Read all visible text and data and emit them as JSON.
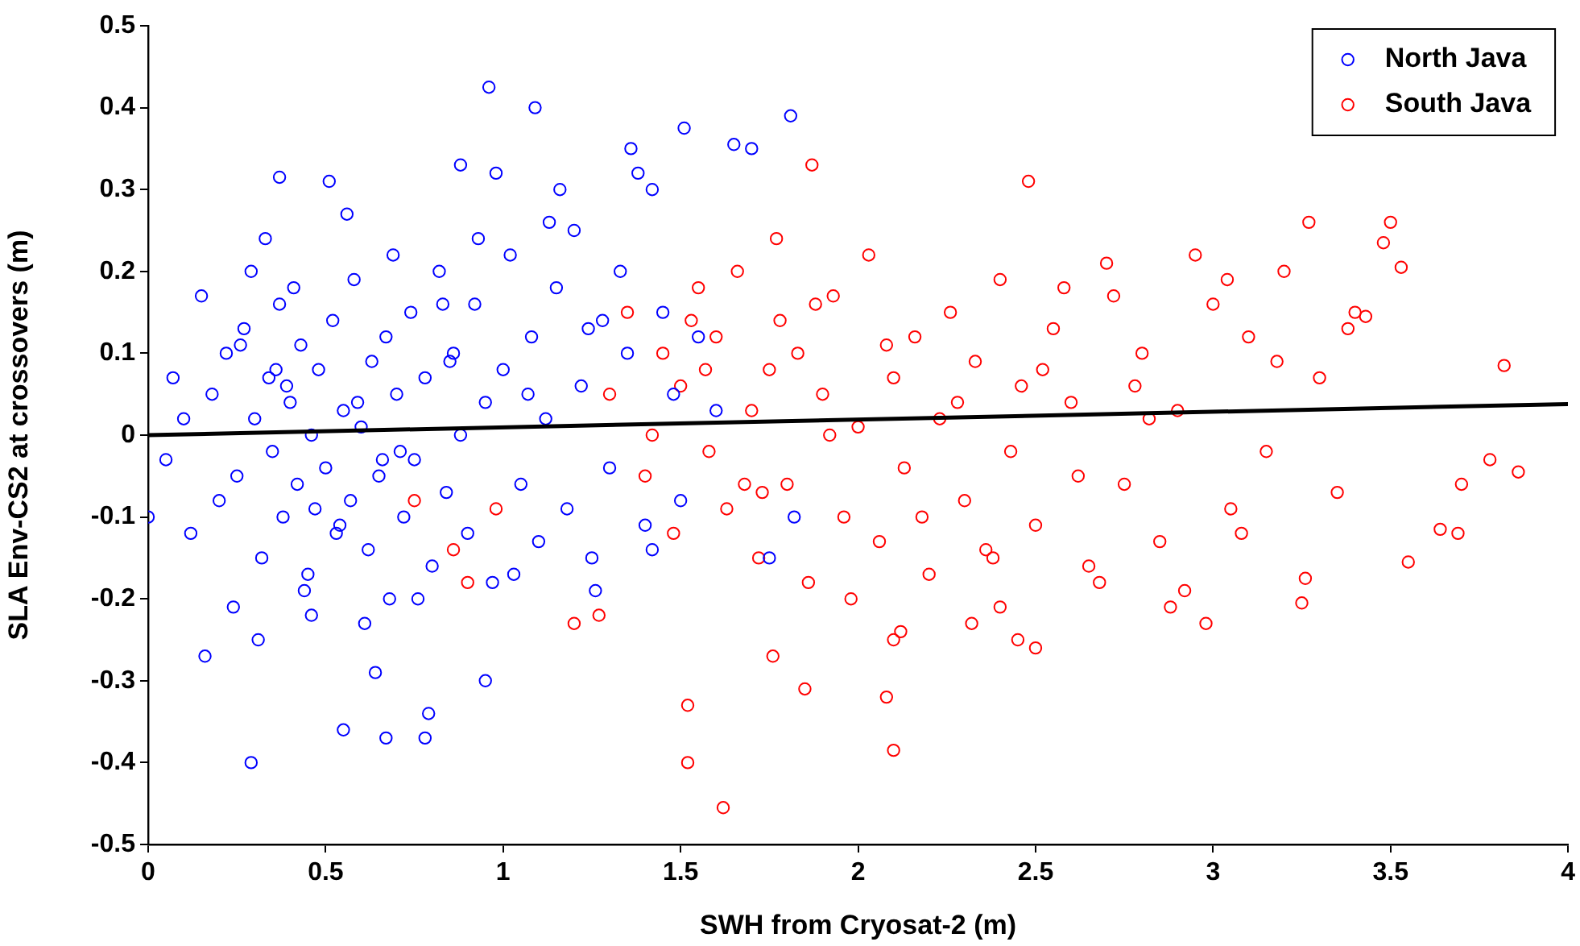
{
  "chart_data": {
    "type": "scatter",
    "xlabel": "SWH from Cryosat-2 (m)",
    "ylabel": "SLA Env-CS2 at crossovers (m)",
    "xlim": [
      0,
      4
    ],
    "xticks": [
      0,
      0.5,
      1,
      1.5,
      2,
      2.5,
      3,
      3.5,
      4
    ],
    "ylim": [
      -0.5,
      0.5
    ],
    "yticks": [
      -0.5,
      -0.4,
      -0.3,
      -0.2,
      -0.1,
      0,
      0.1,
      0.2,
      0.3,
      0.4,
      0.5
    ],
    "grid": false,
    "legend": "top right",
    "marker": "circle",
    "series": [
      {
        "name": "North Java",
        "color": "#0000ff",
        "x": [
          0.0,
          0.07,
          0.15,
          0.29,
          0.29,
          0.55,
          0.67,
          0.78,
          0.79,
          0.95,
          0.64,
          0.96,
          1.09,
          1.81,
          1.51,
          0.37,
          0.51,
          0.88,
          0.98,
          1.65,
          1.7,
          0.16,
          0.31,
          0.46,
          1.38,
          1.36,
          1.16,
          1.42,
          1.26,
          1.42,
          1.75,
          1.82,
          0.05,
          0.1,
          0.12,
          0.18,
          0.2,
          0.22,
          0.25,
          0.27,
          0.3,
          0.32,
          0.34,
          0.35,
          0.37,
          0.38,
          0.4,
          0.42,
          0.43,
          0.45,
          0.46,
          0.48,
          0.5,
          0.52,
          0.53,
          0.55,
          0.57,
          0.58,
          0.6,
          0.62,
          0.63,
          0.65,
          0.67,
          0.68,
          0.7,
          0.72,
          0.74,
          0.75,
          0.78,
          0.8,
          0.82,
          0.84,
          0.86,
          0.88,
          0.9,
          0.92,
          0.95,
          0.97,
          1.0,
          1.02,
          1.05,
          1.08,
          1.1,
          1.12,
          1.15,
          1.18,
          1.2,
          1.22,
          1.25,
          1.28,
          1.3,
          1.33,
          1.35,
          1.4,
          1.45,
          1.48,
          1.5,
          1.55,
          1.6,
          0.24,
          0.33,
          0.41,
          0.44,
          0.56,
          0.61,
          0.69,
          0.76,
          0.83,
          0.93,
          1.03,
          1.13,
          0.36,
          0.47,
          0.59,
          0.71,
          0.26,
          0.39,
          0.54,
          0.66,
          0.85,
          1.07,
          1.24
        ],
        "values": [
          -0.1,
          0.07,
          0.17,
          0.2,
          -0.4,
          -0.36,
          -0.37,
          -0.37,
          -0.34,
          -0.3,
          -0.29,
          0.425,
          0.4,
          0.39,
          0.375,
          0.315,
          0.31,
          0.33,
          0.32,
          0.355,
          0.35,
          -0.27,
          -0.25,
          -0.22,
          0.32,
          0.35,
          0.3,
          0.3,
          -0.19,
          -0.14,
          -0.15,
          -0.1,
          -0.03,
          0.02,
          -0.12,
          0.05,
          -0.08,
          0.1,
          -0.05,
          0.13,
          0.02,
          -0.15,
          0.07,
          -0.02,
          0.16,
          -0.1,
          0.04,
          -0.06,
          0.11,
          -0.17,
          0.0,
          0.08,
          -0.04,
          0.14,
          -0.12,
          0.03,
          -0.08,
          0.19,
          0.01,
          -0.14,
          0.09,
          -0.05,
          0.12,
          -0.2,
          0.05,
          -0.1,
          0.15,
          -0.03,
          0.07,
          -0.16,
          0.2,
          -0.07,
          0.1,
          0.0,
          -0.12,
          0.16,
          0.04,
          -0.18,
          0.08,
          0.22,
          -0.06,
          0.12,
          -0.13,
          0.02,
          0.18,
          -0.09,
          0.25,
          0.06,
          -0.15,
          0.14,
          -0.04,
          0.2,
          0.1,
          -0.11,
          0.15,
          0.05,
          -0.08,
          0.12,
          0.03,
          -0.21,
          0.24,
          0.18,
          -0.19,
          0.27,
          -0.23,
          0.22,
          -0.2,
          0.16,
          0.24,
          -0.17,
          0.26,
          0.08,
          -0.09,
          0.04,
          -0.02,
          0.11,
          0.06,
          -0.11,
          -0.03,
          0.09,
          0.05,
          0.13
        ]
      },
      {
        "name": "South Java",
        "color": "#ff0000",
        "x": [
          1.62,
          1.52,
          1.52,
          1.85,
          1.76,
          2.08,
          2.1,
          2.1,
          2.4,
          2.45,
          2.5,
          2.32,
          3.5,
          3.27,
          3.48,
          3.53,
          2.48,
          1.87,
          3.82,
          3.86,
          3.78,
          3.7,
          3.64,
          3.69,
          3.55,
          3.25,
          3.26,
          2.98,
          3.38,
          3.4,
          3.43,
          3.0,
          3.04,
          1.2,
          1.27,
          0.9,
          0.86,
          0.75,
          0.98,
          1.3,
          1.35,
          1.4,
          1.45,
          1.48,
          1.5,
          1.55,
          1.58,
          1.6,
          1.63,
          1.66,
          1.7,
          1.72,
          1.75,
          1.78,
          1.8,
          1.83,
          1.86,
          1.9,
          1.93,
          1.96,
          2.0,
          2.03,
          2.06,
          2.1,
          2.13,
          2.16,
          2.2,
          2.23,
          2.26,
          2.3,
          2.33,
          2.36,
          2.4,
          2.43,
          2.46,
          2.5,
          2.55,
          2.6,
          2.65,
          2.7,
          2.75,
          2.8,
          2.85,
          2.9,
          2.95,
          3.05,
          3.1,
          3.15,
          3.2,
          3.3,
          3.35,
          1.42,
          1.57,
          1.68,
          1.77,
          1.88,
          1.98,
          2.08,
          2.18,
          2.28,
          2.38,
          2.58,
          2.68,
          2.78,
          2.88,
          3.08,
          3.18,
          2.62,
          2.72,
          2.82,
          2.92,
          1.53,
          1.73,
          1.92,
          2.12,
          2.52
        ],
        "values": [
          -0.455,
          -0.4,
          -0.33,
          -0.31,
          -0.27,
          -0.32,
          -0.385,
          -0.25,
          -0.21,
          -0.25,
          -0.26,
          -0.23,
          0.26,
          0.26,
          0.235,
          0.205,
          0.31,
          0.33,
          0.085,
          -0.045,
          -0.03,
          -0.06,
          -0.115,
          -0.12,
          -0.155,
          -0.205,
          -0.175,
          -0.23,
          0.13,
          0.15,
          0.145,
          0.16,
          0.19,
          -0.23,
          -0.22,
          -0.18,
          -0.14,
          -0.08,
          -0.09,
          0.05,
          0.15,
          -0.05,
          0.1,
          -0.12,
          0.06,
          0.18,
          -0.02,
          0.12,
          -0.09,
          0.2,
          0.03,
          -0.15,
          0.08,
          0.14,
          -0.06,
          0.1,
          -0.18,
          0.05,
          0.17,
          -0.1,
          0.01,
          0.22,
          -0.13,
          0.07,
          -0.04,
          0.12,
          -0.17,
          0.02,
          0.15,
          -0.08,
          0.09,
          -0.14,
          0.19,
          -0.02,
          0.06,
          -0.11,
          0.13,
          0.04,
          -0.16,
          0.21,
          -0.06,
          0.1,
          -0.13,
          0.03,
          0.22,
          -0.09,
          0.12,
          -0.02,
          0.2,
          0.07,
          -0.07,
          0.0,
          0.08,
          -0.06,
          0.24,
          0.16,
          -0.2,
          0.11,
          -0.1,
          0.04,
          -0.15,
          0.18,
          -0.18,
          0.06,
          -0.21,
          -0.12,
          0.09,
          -0.05,
          0.17,
          0.02,
          -0.19,
          0.14,
          -0.07,
          0.0,
          -0.24,
          0.08
        ]
      },
      {
        "type": "line",
        "marker": "none",
        "color": "#000000",
        "x": [
          0,
          4
        ],
        "values": [
          0.0,
          0.038
        ]
      }
    ]
  }
}
